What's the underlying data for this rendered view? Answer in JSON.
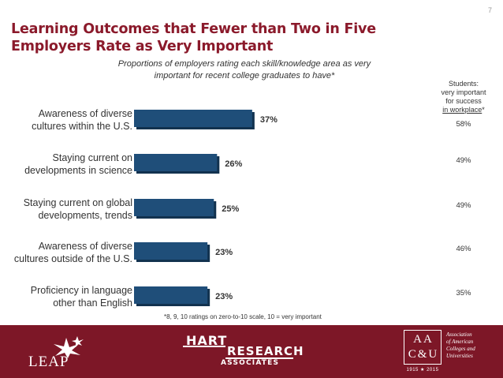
{
  "page_number": "7",
  "title": "Learning Outcomes that Fewer than Two in Five Employers Rate as Very Important",
  "students_header": {
    "line1": "Students:",
    "line2": "very important",
    "line3": "for success",
    "line4": "in workplace",
    "asterisk": "*"
  },
  "footnote": "*8, 9, 10 ratings on zero-to-10 scale, 10 = very important",
  "footer": {
    "leap_label": "LEAP",
    "hart_line1": "HART",
    "hart_line2": "RESEARCH",
    "hart_line3": "ASSOCIATES",
    "aacu_letters_top": "AA",
    "aacu_letters_bottom": "C&U",
    "aacu_years": "1915 ★ 2015",
    "aacu_name_1": "Association",
    "aacu_name_2": "of American",
    "aacu_name_3": "Colleges and",
    "aacu_name_4": "Universities"
  },
  "colors": {
    "bar": "#1f4e79",
    "bar_shadow": "#12324f",
    "title": "#8b1a2b",
    "footer": "#7d1727"
  },
  "chart_data": {
    "type": "bar",
    "orientation": "horizontal",
    "title": "Proportions of employers rating each skill/knowledge area as very important for recent college graduates to have*",
    "categories": [
      [
        "Awareness of diverse",
        "cultures within the U.S."
      ],
      [
        "Staying current on",
        "developments in science"
      ],
      [
        "Staying current on global",
        "developments, trends"
      ],
      [
        "Awareness of diverse",
        "cultures outside of the U.S."
      ],
      [
        "Proficiency in language",
        "other than English"
      ]
    ],
    "values": [
      37,
      26,
      25,
      23,
      23
    ],
    "value_labels": [
      "37%",
      "26%",
      "25%",
      "23%",
      "23%"
    ],
    "students_values": [
      "58%",
      "49%",
      "49%",
      "46%",
      "35%"
    ],
    "xlim": [
      0,
      100
    ],
    "grid": false,
    "legend": "none"
  }
}
